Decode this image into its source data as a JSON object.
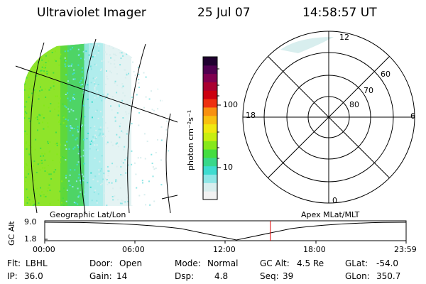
{
  "header": {
    "title": "Ultraviolet Imager",
    "date": "25 Jul 07",
    "time": "14:58:57 UT"
  },
  "colorbar": {
    "label": "photon cm⁻²s⁻¹",
    "tick_100": "100",
    "tick_10": "10",
    "colors": [
      "#f2f2f2",
      "#d8eeee",
      "#8fe6e6",
      "#3fdcd0",
      "#38d88a",
      "#44dd40",
      "#86e81a",
      "#c8ee10",
      "#f0e810",
      "#f8c010",
      "#f89010",
      "#ee3010",
      "#cc0010",
      "#aa0030",
      "#800050",
      "#500050",
      "#200030"
    ]
  },
  "polar": {
    "mlt_top": "12",
    "mlt_left": "18",
    "mlt_right": "6",
    "mlt_bottom": "0",
    "lat_60": "60",
    "lat_70": "70",
    "lat_80": "80"
  },
  "timeline": {
    "left_label": "Geographic Lat/Lon",
    "right_label": "Apex MLat/MLT",
    "y_axis_label": "GC Alt",
    "y_top": "9.0",
    "y_bottom": "1.8",
    "ticks": [
      "00:00",
      "06:00",
      "12:00",
      "18:00",
      "23:59"
    ],
    "current_time_fraction": 0.6243,
    "marker_color": "#e00000"
  },
  "info": {
    "row1": [
      {
        "label": "Flt:",
        "value": "LBHL"
      },
      {
        "label": "Door:",
        "value": "Open"
      },
      {
        "label": "Mode:",
        "value": "Normal"
      },
      {
        "label": "GC Alt:",
        "value": "4.5 Re"
      },
      {
        "label": "GLat:",
        "value": "-54.0"
      }
    ],
    "row2": [
      {
        "label": "IP:",
        "value": "36.0"
      },
      {
        "label": "Gain:",
        "value": "14"
      },
      {
        "label": "Dsp:",
        "value": "4.8"
      },
      {
        "label": "Seq:",
        "value": "39"
      },
      {
        "label": "GLon:",
        "value": "350.7"
      }
    ]
  }
}
